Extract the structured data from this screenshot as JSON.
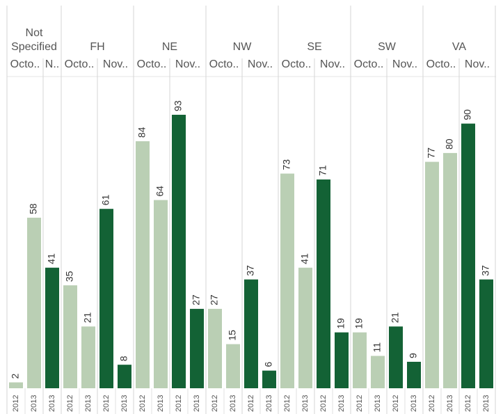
{
  "chart_data": {
    "type": "bar",
    "ylim": [
      0,
      106
    ],
    "groups": [
      {
        "label": "Not Specified",
        "months": [
          {
            "label": "Octo..",
            "color": "#bacfb4",
            "categories": [
              "2012",
              "2013"
            ],
            "values": [
              2,
              58
            ]
          },
          {
            "label": "N..",
            "color": "#136235",
            "categories": [
              "2013"
            ],
            "values": [
              41
            ]
          }
        ]
      },
      {
        "label": "FH",
        "months": [
          {
            "label": "Octo..",
            "color": "#bacfb4",
            "categories": [
              "2012",
              "2013"
            ],
            "values": [
              35,
              21
            ]
          },
          {
            "label": "Nov..",
            "color": "#136235",
            "categories": [
              "2012",
              "2013"
            ],
            "values": [
              61,
              8
            ]
          }
        ]
      },
      {
        "label": "NE",
        "months": [
          {
            "label": "Octo..",
            "color": "#bacfb4",
            "categories": [
              "2012",
              "2013"
            ],
            "values": [
              84,
              64
            ]
          },
          {
            "label": "Nov..",
            "color": "#136235",
            "categories": [
              "2012",
              "2013"
            ],
            "values": [
              93,
              27
            ]
          }
        ]
      },
      {
        "label": "NW",
        "months": [
          {
            "label": "Octo..",
            "color": "#bacfb4",
            "categories": [
              "2012",
              "2013"
            ],
            "values": [
              27,
              15
            ]
          },
          {
            "label": "Nov..",
            "color": "#136235",
            "categories": [
              "2012",
              "2013"
            ],
            "values": [
              37,
              6
            ]
          }
        ]
      },
      {
        "label": "SE",
        "months": [
          {
            "label": "Octo..",
            "color": "#bacfb4",
            "categories": [
              "2012",
              "2013"
            ],
            "values": [
              73,
              41
            ]
          },
          {
            "label": "Nov..",
            "color": "#136235",
            "categories": [
              "2012",
              "2013"
            ],
            "values": [
              71,
              19
            ]
          }
        ]
      },
      {
        "label": "SW",
        "months": [
          {
            "label": "Octo..",
            "color": "#bacfb4",
            "categories": [
              "2012",
              "2013"
            ],
            "values": [
              19,
              11
            ]
          },
          {
            "label": "Nov..",
            "color": "#136235",
            "categories": [
              "2012",
              "2013"
            ],
            "values": [
              21,
              9
            ]
          }
        ]
      },
      {
        "label": "VA",
        "months": [
          {
            "label": "Octo..",
            "color": "#bacfb4",
            "categories": [
              "2012",
              "2013"
            ],
            "values": [
              77,
              80
            ]
          },
          {
            "label": "Nov..",
            "color": "#136235",
            "categories": [
              "2012",
              "2013"
            ],
            "values": [
              90,
              37
            ]
          }
        ]
      }
    ]
  }
}
